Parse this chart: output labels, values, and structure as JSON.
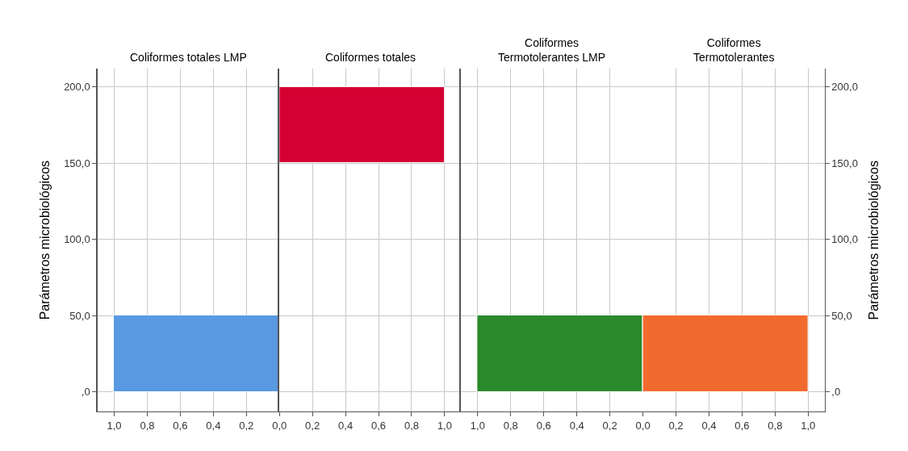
{
  "chart_data": [
    {
      "type": "histogram",
      "orientation": "horizontal",
      "title": "Coliformes totales LMP",
      "bins": [
        0,
        50
      ],
      "values": [
        1
      ],
      "color": "#5899e2",
      "xlim": [
        1.1,
        0
      ],
      "xticks": [
        {
          "value": 1,
          "label": "1,0"
        },
        {
          "value": 0.8,
          "label": "0,8"
        },
        {
          "value": 0.6,
          "label": "0,6"
        },
        {
          "value": 0.4,
          "label": "0,4"
        },
        {
          "value": 0.2,
          "label": "0,2"
        },
        {
          "value": 0,
          "label": "0,0"
        }
      ],
      "ylim": [
        -13,
        212
      ],
      "yticks": [
        {
          "value": 0,
          "label": ",0"
        },
        {
          "value": 50,
          "label": "50,0"
        },
        {
          "value": 100,
          "label": "100,0"
        },
        {
          "value": 150,
          "label": "150,0"
        },
        {
          "value": 200,
          "label": "200,0"
        }
      ],
      "ylabel": "Parámetros microbiológicos",
      "grid": true
    },
    {
      "type": "histogram",
      "orientation": "horizontal",
      "title": "Coliformes totales",
      "bins": [
        150,
        200
      ],
      "values": [
        1
      ],
      "color": "#d50032",
      "xlim": [
        0,
        1.1
      ],
      "xticks": [
        {
          "value": 0.2,
          "label": "0,2"
        },
        {
          "value": 0.4,
          "label": "0,4"
        },
        {
          "value": 0.6,
          "label": "0,6"
        },
        {
          "value": 0.8,
          "label": "0,8"
        },
        {
          "value": 1,
          "label": "1,0"
        }
      ],
      "ylim": [
        -13,
        212
      ],
      "tick_labels": "x",
      "grid": true
    },
    {
      "type": "histogram",
      "orientation": "horizontal",
      "title": "Coliformes\nTermotolerantes LMP",
      "bins": [
        0,
        50
      ],
      "values": [
        1
      ],
      "color": "#2a8a2b",
      "xlim": [
        1.1,
        0
      ],
      "xticks": [
        {
          "value": 1,
          "label": "1,0"
        },
        {
          "value": 0.8,
          "label": "0,8"
        },
        {
          "value": 0.6,
          "label": "0,6"
        },
        {
          "value": 0.4,
          "label": "0,4"
        },
        {
          "value": 0.2,
          "label": "0,2"
        },
        {
          "value": 0,
          "label": "0,0"
        }
      ],
      "ylim": [
        -13,
        212
      ],
      "tick_labels": "x",
      "grid": true
    },
    {
      "type": "histogram",
      "orientation": "horizontal",
      "title": "Coliformes\nTermotolerantes",
      "bins": [
        0,
        50
      ],
      "series": [
        {
          "values": [
            1
          ],
          "color": "#f26b2e",
          "axis": "y2"
        }
      ],
      "xlim": [
        0,
        1.1
      ],
      "xticks": [
        {
          "value": 0.2,
          "label": "0,2"
        },
        {
          "value": 0.4,
          "label": "0,4"
        },
        {
          "value": 0.6,
          "label": "0,6"
        },
        {
          "value": 0.8,
          "label": "0,8"
        },
        {
          "value": 1,
          "label": "1,0"
        }
      ],
      "ylim": [
        -13,
        212
      ],
      "y2lim": [
        -13,
        212
      ],
      "y2ticks": [
        {
          "value": 0,
          "label": ",0"
        },
        {
          "value": 50,
          "label": "50,0"
        },
        {
          "value": 100,
          "label": "100,0"
        },
        {
          "value": 150,
          "label": "150,0"
        },
        {
          "value": 200,
          "label": "200,0"
        }
      ],
      "y2label": "Parámetros microbiológicos",
      "grid": true
    }
  ]
}
